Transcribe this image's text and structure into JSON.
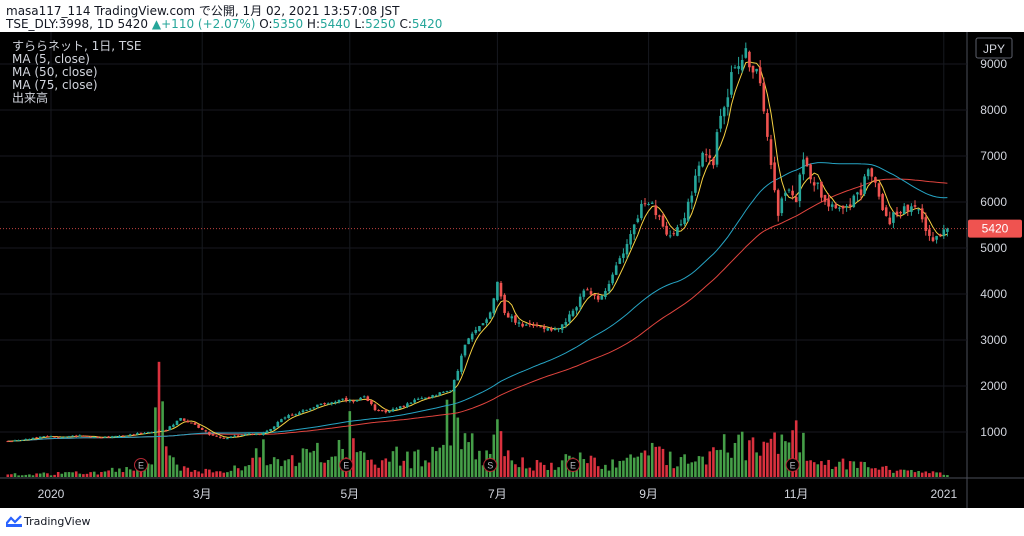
{
  "header": {
    "line1": "masa117_114 TradingView.com で公開, 1月 02, 2021 13:57:08 JST",
    "symbol": "TSE_DLY:3998, 1D",
    "price": "5420",
    "arrow": "▲",
    "change": "+110 (+2.07%)",
    "o_label": "O:",
    "o_val": "5350",
    "h_label": "H:",
    "h_val": "5440",
    "l_label": "L:",
    "l_val": "5250",
    "c_label": "C:",
    "c_val": "5420"
  },
  "legend": {
    "title": "すららネット, 1日, TSE",
    "ma5": "MA (5, close)",
    "ma50": "MA (50, close)",
    "ma75": "MA (75, close)",
    "volume": "出来高"
  },
  "currency_button": "JPY",
  "footer": {
    "brand": "TradingView"
  },
  "colors": {
    "up": "#26a69a",
    "down": "#ef5350",
    "vol_up": "#4caf50",
    "vol_down": "#f23645",
    "ma5": "#f5d142",
    "ma50": "#26a4c4",
    "ma75": "#e0443e",
    "price_tag": "#ef5350"
  },
  "chart_data": {
    "type": "candlestick",
    "title": "すららネット, 1日, TSE",
    "xlabel": "",
    "ylabel": "",
    "y_ticks": [
      1000,
      2000,
      3000,
      4000,
      5000,
      6000,
      7000,
      8000,
      9000
    ],
    "y_tick_labels": [
      "1000",
      "2000",
      "3000",
      "4000",
      "5000",
      "6000",
      "7000",
      "8000",
      "9000"
    ],
    "ylim": [
      200,
      9700
    ],
    "x_ticks": [
      {
        "label": "2020",
        "bar": 12
      },
      {
        "label": "3月",
        "bar": 54
      },
      {
        "label": "5月",
        "bar": 95
      },
      {
        "label": "7月",
        "bar": 136
      },
      {
        "label": "9月",
        "bar": 178
      },
      {
        "label": "11月",
        "bar": 219
      },
      {
        "label": "2021",
        "bar": 260
      }
    ],
    "current_price": 5420,
    "event_markers": [
      {
        "label": "E",
        "bar": 37
      },
      {
        "label": "E",
        "bar": 94
      },
      {
        "label": "S",
        "bar": 134
      },
      {
        "label": "E",
        "bar": 157
      },
      {
        "label": "E",
        "bar": 218
      }
    ],
    "ohlc_anchors": [
      [
        0,
        800
      ],
      [
        5,
        850
      ],
      [
        10,
        900
      ],
      [
        15,
        880
      ],
      [
        20,
        920
      ],
      [
        25,
        870
      ],
      [
        30,
        900
      ],
      [
        35,
        950
      ],
      [
        40,
        1000
      ],
      [
        44,
        1050
      ],
      [
        48,
        1300
      ],
      [
        52,
        1150
      ],
      [
        56,
        950
      ],
      [
        60,
        850
      ],
      [
        65,
        950
      ],
      [
        70,
        950
      ],
      [
        73,
        1050
      ],
      [
        76,
        1300
      ],
      [
        80,
        1400
      ],
      [
        83,
        1500
      ],
      [
        87,
        1600
      ],
      [
        90,
        1650
      ],
      [
        93,
        1700
      ],
      [
        96,
        1650
      ],
      [
        99,
        1750
      ],
      [
        102,
        1500
      ],
      [
        105,
        1450
      ],
      [
        108,
        1500
      ],
      [
        112,
        1650
      ],
      [
        116,
        1750
      ],
      [
        120,
        1850
      ],
      [
        123,
        1900
      ],
      [
        124,
        2100
      ],
      [
        127,
        2900
      ],
      [
        131,
        3300
      ],
      [
        134,
        3600
      ],
      [
        136,
        4300
      ],
      [
        138,
        3600
      ],
      [
        141,
        3400
      ],
      [
        144,
        3300
      ],
      [
        148,
        3300
      ],
      [
        151,
        3250
      ],
      [
        154,
        3300
      ],
      [
        157,
        3600
      ],
      [
        160,
        4100
      ],
      [
        163,
        3900
      ],
      [
        166,
        4000
      ],
      [
        170,
        4800
      ],
      [
        173,
        5300
      ],
      [
        176,
        5900
      ],
      [
        179,
        5900
      ],
      [
        183,
        5300
      ],
      [
        187,
        5500
      ],
      [
        190,
        6200
      ],
      [
        193,
        7000
      ],
      [
        196,
        6900
      ],
      [
        198,
        7900
      ],
      [
        200,
        8400
      ],
      [
        202,
        9000
      ],
      [
        205,
        9200
      ],
      [
        208,
        8800
      ],
      [
        210,
        8100
      ],
      [
        212,
        6900
      ],
      [
        214,
        5800
      ],
      [
        216,
        6300
      ],
      [
        218,
        6100
      ],
      [
        219,
        6000
      ],
      [
        221,
        7000
      ],
      [
        223,
        6600
      ],
      [
        226,
        6200
      ],
      [
        228,
        6000
      ],
      [
        231,
        5900
      ],
      [
        234,
        6000
      ],
      [
        237,
        6200
      ],
      [
        239,
        6800
      ],
      [
        241,
        6400
      ],
      [
        243,
        5800
      ],
      [
        245,
        5600
      ],
      [
        247,
        5800
      ],
      [
        250,
        5850
      ],
      [
        253,
        5800
      ],
      [
        255,
        5400
      ],
      [
        257,
        5200
      ],
      [
        259,
        5300
      ],
      [
        261,
        5420
      ]
    ],
    "volume_anchors": [
      [
        0,
        60
      ],
      [
        12,
        80
      ],
      [
        24,
        100
      ],
      [
        35,
        220
      ],
      [
        40,
        400
      ],
      [
        42,
        1950
      ],
      [
        44,
        500
      ],
      [
        48,
        200
      ],
      [
        55,
        150
      ],
      [
        60,
        100
      ],
      [
        65,
        250
      ],
      [
        71,
        700
      ],
      [
        73,
        350
      ],
      [
        80,
        500
      ],
      [
        86,
        550
      ],
      [
        90,
        400
      ],
      [
        93,
        700
      ],
      [
        95,
        1150
      ],
      [
        97,
        500
      ],
      [
        100,
        350
      ],
      [
        104,
        300
      ],
      [
        108,
        500
      ],
      [
        112,
        400
      ],
      [
        116,
        550
      ],
      [
        120,
        650
      ],
      [
        122,
        1300
      ],
      [
        124,
        1550
      ],
      [
        126,
        1100
      ],
      [
        128,
        1000
      ],
      [
        130,
        800
      ],
      [
        132,
        500
      ],
      [
        134,
        450
      ],
      [
        136,
        1000
      ],
      [
        138,
        650
      ],
      [
        141,
        350
      ],
      [
        146,
        300
      ],
      [
        150,
        250
      ],
      [
        154,
        350
      ],
      [
        158,
        450
      ],
      [
        162,
        350
      ],
      [
        166,
        250
      ],
      [
        170,
        350
      ],
      [
        174,
        550
      ],
      [
        178,
        600
      ],
      [
        182,
        500
      ],
      [
        186,
        400
      ],
      [
        190,
        450
      ],
      [
        194,
        550
      ],
      [
        198,
        700
      ],
      [
        202,
        800
      ],
      [
        206,
        700
      ],
      [
        208,
        650
      ],
      [
        210,
        600
      ],
      [
        212,
        800
      ],
      [
        214,
        1100
      ],
      [
        216,
        750
      ],
      [
        218,
        900
      ],
      [
        219,
        1000
      ],
      [
        221,
        800
      ],
      [
        224,
        500
      ],
      [
        228,
        400
      ],
      [
        232,
        300
      ],
      [
        236,
        250
      ],
      [
        240,
        250
      ],
      [
        244,
        200
      ],
      [
        248,
        150
      ],
      [
        252,
        120
      ],
      [
        256,
        100
      ],
      [
        261,
        60
      ]
    ],
    "ma75_last": 6400,
    "ma50_last": 6100,
    "legend_entries": [
      "MA (5, close)",
      "MA (50, close)",
      "MA (75, close)",
      "出来高"
    ]
  }
}
